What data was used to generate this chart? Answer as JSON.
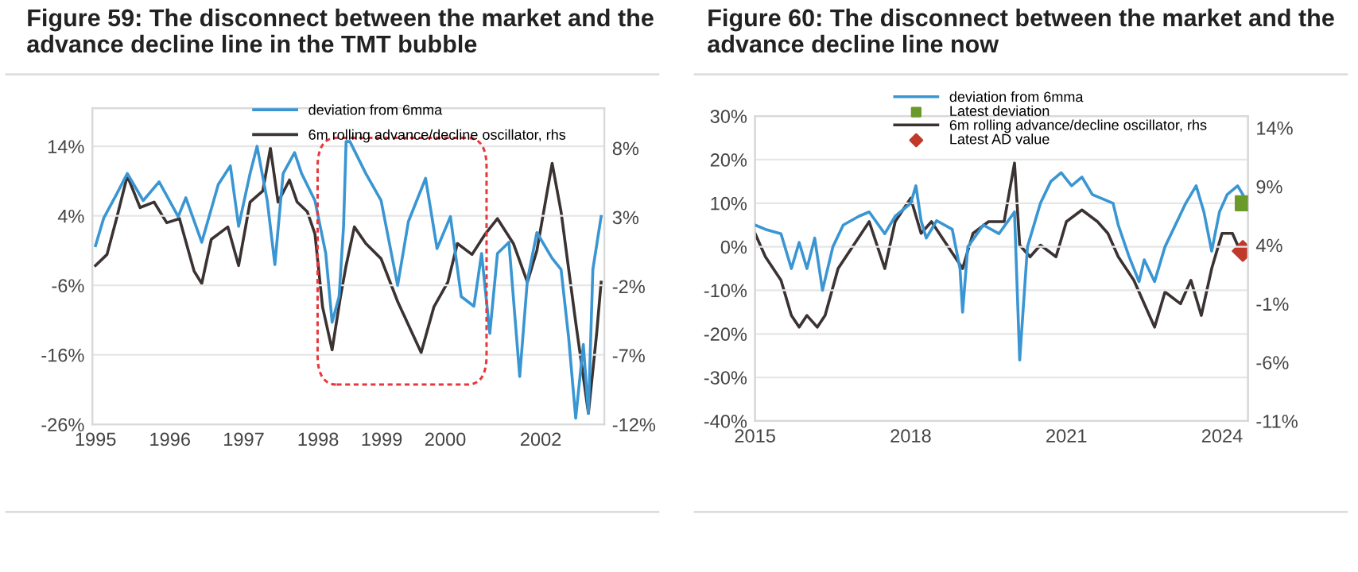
{
  "chart_data": [
    {
      "type": "line",
      "title": "Figure 59: The disconnect between the market and the advance decline line in the TMT bubble",
      "legend": "top",
      "grid": "y",
      "xlim": [
        1994.95,
        2003
      ],
      "xticks": [
        1995,
        {
          "value": 1996.17,
          "label": "1996"
        },
        {
          "value": 1997.33,
          "label": "1997"
        },
        {
          "value": 1998.5,
          "label": "1998"
        },
        {
          "value": 1999.5,
          "label": "1999"
        },
        {
          "value": 2000.5,
          "label": "2000"
        },
        2002
      ],
      "ylim": [
        -26,
        19.5
      ],
      "yticks": [
        {
          "value": -26,
          "label": "-26%"
        },
        {
          "value": -16,
          "label": "-16%"
        },
        {
          "value": -6,
          "label": "-6%"
        },
        {
          "value": 4,
          "label": "4%"
        },
        {
          "value": 14,
          "label": "14%"
        }
      ],
      "y2lim": [
        -12,
        10.9
      ],
      "y2ticks": [
        {
          "value": -12,
          "label": "-12%"
        },
        {
          "value": -7,
          "label": "-7%"
        },
        {
          "value": -2,
          "label": "-2%"
        },
        {
          "value": 3,
          "label": "3%"
        },
        {
          "value": 8,
          "label": "8%"
        }
      ],
      "series": [
        {
          "name": "deviation from 6mma",
          "color": "#3a96d3",
          "axis": "y",
          "x": [
            1995.0,
            1995.13,
            1995.33,
            1995.5,
            1995.75,
            1996.0,
            1996.3,
            1996.42,
            1996.67,
            1996.93,
            1997.12,
            1997.25,
            1997.43,
            1997.54,
            1997.7,
            1997.82,
            1997.95,
            1998.13,
            1998.24,
            1998.45,
            1998.62,
            1998.72,
            1998.83,
            1998.9,
            1998.94,
            1999.0,
            1999.25,
            1999.49,
            1999.75,
            1999.92,
            2000.19,
            2000.37,
            2000.58,
            2000.75,
            2000.95,
            2001.07,
            2001.2,
            2001.32,
            2001.5,
            2001.67,
            2001.79,
            2001.94,
            2002.18,
            2002.32,
            2002.44,
            2002.55,
            2002.67,
            2002.75,
            2002.82,
            2002.95
          ],
          "values": [
            -0.3,
            3.7,
            7.1,
            10.1,
            6.2,
            8.9,
            3.9,
            6.6,
            0.2,
            8.5,
            11.2,
            2.5,
            10.1,
            14,
            6.2,
            -3,
            10.1,
            13.1,
            10.1,
            6.2,
            -1.4,
            -11.3,
            -7.6,
            2.5,
            14.7,
            14.7,
            10.1,
            6.2,
            -6,
            3.2,
            9.4,
            -0.7,
            3.9,
            -7.6,
            -9,
            -1.4,
            -12.9,
            -1.4,
            0.2,
            -19.1,
            -5.3,
            1.6,
            -2.1,
            -3.7,
            -13.6,
            -25.1,
            -14.5,
            -24.4,
            -3.7,
            3.9
          ]
        },
        {
          "name": "6m rolling advance/decline oscillator, rhs",
          "color": "#3b3232",
          "axis": "y2",
          "x": [
            1995.0,
            1995.18,
            1995.33,
            1995.5,
            1995.7,
            1995.92,
            1996.12,
            1996.32,
            1996.55,
            1996.67,
            1996.82,
            1997.08,
            1997.25,
            1997.43,
            1997.63,
            1997.75,
            1997.87,
            1998.05,
            1998.17,
            1998.33,
            1998.45,
            1998.57,
            1998.72,
            1998.85,
            1998.94,
            1999.07,
            1999.25,
            1999.49,
            1999.75,
            1999.95,
            2000.12,
            2000.32,
            2000.54,
            2000.69,
            2000.92,
            2001.13,
            2001.32,
            2001.57,
            2001.79,
            2001.94,
            2002.18,
            2002.32,
            2002.55,
            2002.75,
            2002.88,
            2002.95
          ],
          "values": [
            -0.5,
            0.3,
            2.9,
            6.0,
            3.7,
            4.1,
            2.6,
            2.9,
            -0.9,
            -1.8,
            1.4,
            2.3,
            -0.5,
            4.1,
            4.9,
            8.0,
            4.1,
            5.7,
            4.1,
            3.4,
            1.8,
            -3.5,
            -6.6,
            -2.8,
            -0.5,
            2.3,
            1.1,
            0.0,
            -3.1,
            -5.1,
            -6.8,
            -3.5,
            -1.7,
            1.1,
            0.3,
            1.8,
            2.9,
            1.1,
            -1.7,
            0.6,
            6.9,
            3.4,
            -4.6,
            -11.2,
            -5.4,
            -1.7
          ]
        }
      ]
    },
    {
      "type": "line",
      "title": "Figure 60: The disconnect between the market and the advance decline line now",
      "legend": "top",
      "grid": "y",
      "xlim": [
        2015,
        2024.5
      ],
      "xticks": [
        2015,
        2018,
        2021,
        2024
      ],
      "ylim": [
        -40,
        30
      ],
      "yticks": [
        {
          "value": -40,
          "label": "-40%"
        },
        {
          "value": -30,
          "label": "-30%"
        },
        {
          "value": -20,
          "label": "-20%"
        },
        {
          "value": -10,
          "label": "-10%"
        },
        {
          "value": 0,
          "label": "0%"
        },
        {
          "value": 10,
          "label": "10%"
        },
        {
          "value": 20,
          "label": "20%"
        },
        {
          "value": 30,
          "label": "30%"
        }
      ],
      "y2lim": [
        -11,
        15
      ],
      "y2ticks": [
        {
          "value": -11,
          "label": "-11%"
        },
        {
          "value": -6,
          "label": "-6%"
        },
        {
          "value": -1,
          "label": "-1%"
        },
        {
          "value": 4,
          "label": "4%"
        },
        {
          "value": 9,
          "label": "9%"
        },
        {
          "value": 14,
          "label": "14%"
        }
      ],
      "series": [
        {
          "name": "deviation from 6mma",
          "color": "#3a96d3",
          "axis": "y",
          "x": [
            2015.0,
            2015.2,
            2015.5,
            2015.7,
            2015.85,
            2016.0,
            2016.15,
            2016.3,
            2016.5,
            2016.7,
            2017.0,
            2017.2,
            2017.5,
            2017.7,
            2018.0,
            2018.1,
            2018.2,
            2018.3,
            2018.5,
            2018.8,
            2018.95,
            2019.0,
            2019.1,
            2019.4,
            2019.7,
            2020.0,
            2020.1,
            2020.25,
            2020.5,
            2020.7,
            2020.9,
            2021.1,
            2021.3,
            2021.5,
            2021.7,
            2021.9,
            2022.0,
            2022.2,
            2022.4,
            2022.5,
            2022.7,
            2022.9,
            2023.1,
            2023.3,
            2023.5,
            2023.65,
            2023.8,
            2023.95,
            2024.1,
            2024.3,
            2024.4
          ],
          "values": [
            5,
            4,
            3,
            -5,
            1,
            -5,
            2,
            -10,
            0,
            5,
            7,
            8,
            3,
            7,
            10,
            14,
            6,
            2,
            6,
            4,
            -5,
            -15,
            0,
            5,
            3,
            8,
            -26,
            0,
            10,
            15,
            17,
            14,
            16,
            12,
            11,
            10,
            5,
            -2,
            -8,
            -3,
            -8,
            0,
            5,
            10,
            14,
            8,
            -1,
            8,
            12,
            14,
            12
          ]
        },
        {
          "name": "Latest deviation",
          "color": "#6a9a2a",
          "type": "scatter",
          "marker": "square",
          "axis": "y",
          "x": [
            2024.4
          ],
          "values": [
            10
          ]
        },
        {
          "name": "6m rolling advance/decline oscillator, rhs",
          "color": "#3b3232",
          "axis": "y2",
          "x": [
            2015.0,
            2015.2,
            2015.5,
            2015.7,
            2015.85,
            2016.0,
            2016.2,
            2016.35,
            2016.6,
            2016.9,
            2017.2,
            2017.5,
            2017.7,
            2018.0,
            2018.2,
            2018.4,
            2018.7,
            2019.0,
            2019.2,
            2019.5,
            2019.8,
            2020.0,
            2020.1,
            2020.3,
            2020.5,
            2020.8,
            2021.0,
            2021.3,
            2021.6,
            2021.8,
            2022.0,
            2022.3,
            2022.5,
            2022.7,
            2022.9,
            2023.2,
            2023.4,
            2023.6,
            2023.8,
            2024.0,
            2024.2,
            2024.3
          ],
          "values": [
            5,
            3,
            1,
            -2,
            -3,
            -2,
            -3,
            -2,
            2,
            4,
            6,
            2,
            6,
            8,
            5,
            6,
            4,
            2,
            5,
            6,
            6,
            11,
            4,
            3,
            4,
            3,
            6,
            7,
            6,
            5,
            3,
            1,
            -1,
            -3,
            0,
            -1,
            1,
            -2,
            2,
            5,
            5,
            4
          ]
        },
        {
          "name": "Latest AD value",
          "color": "#c0392b",
          "type": "scatter",
          "marker": "diamond",
          "axis": "y2",
          "x": [
            2024.4
          ],
          "values": [
            3.5
          ]
        }
      ]
    }
  ]
}
